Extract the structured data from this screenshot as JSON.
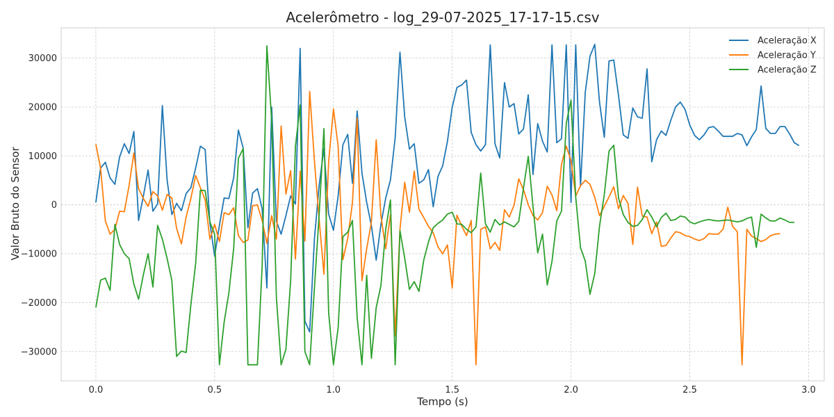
{
  "chart_data": {
    "type": "line",
    "title": "Acelerômetro - log_29-07-2025_17-17-15.csv",
    "xlabel": "Tempo (s)",
    "ylabel": "Valor Bruto do Sensor",
    "xlim": [
      -0.146,
      3.066
    ],
    "ylim": [
      -36000,
      36200
    ],
    "x_ticks": [
      0.0,
      0.5,
      1.0,
      1.5,
      2.0,
      2.5,
      3.0
    ],
    "x_tick_labels": [
      "0.0",
      "0.5",
      "1.0",
      "1.5",
      "2.0",
      "2.5",
      "3.0"
    ],
    "y_ticks": [
      -30000,
      -20000,
      -10000,
      0,
      10000,
      20000,
      30000
    ],
    "y_tick_labels": [
      "−30000",
      "−20000",
      "−10000",
      "0",
      "10000",
      "20000",
      "30000"
    ],
    "grid": true,
    "legend_position": "top-right",
    "dt": 0.02,
    "series": [
      {
        "name": "Aceleração X",
        "color": "#1f77b4",
        "values": [
          500,
          7500,
          8700,
          5500,
          4200,
          9800,
          12500,
          10500,
          15000,
          -3200,
          1800,
          7100,
          -1300,
          200,
          20300,
          5000,
          -2000,
          300,
          -1200,
          2300,
          3500,
          7500,
          12000,
          11300,
          -3700,
          -10500,
          -4200,
          1400,
          1300,
          5500,
          15300,
          11600,
          -4700,
          2400,
          3300,
          -800,
          -17000,
          20000,
          -3400,
          -6000,
          -2200,
          1800,
          200,
          32000,
          -23800,
          -26000,
          -7000,
          4000,
          11500,
          -1900,
          -5200,
          1900,
          12300,
          14400,
          4400,
          19200,
          6500,
          500,
          -4300,
          -11300,
          -4000,
          1400,
          5100,
          13700,
          31200,
          18000,
          11400,
          12500,
          4400,
          5100,
          7200,
          -400,
          5800,
          8000,
          13000,
          20000,
          24000,
          24500,
          25500,
          14800,
          12300,
          11000,
          12300,
          32700,
          12500,
          9600,
          25000,
          20000,
          20700,
          14500,
          15500,
          22500,
          6200,
          16600,
          13000,
          10800,
          32700,
          12700,
          13500,
          32700,
          500,
          32700,
          3800,
          23000,
          30400,
          32800,
          21000,
          13800,
          29400,
          29600,
          22300,
          14300,
          13600,
          19800,
          18000,
          17700,
          27800,
          8800,
          13300,
          15100,
          14200,
          17300,
          20000,
          21000,
          19500,
          16300,
          14200,
          13300,
          14300,
          15800,
          16000,
          15100,
          14000,
          14000,
          14000,
          14600,
          14300,
          12100,
          13900,
          15400,
          24300,
          15600,
          14600,
          14600,
          16000,
          16000,
          14500,
          12700,
          12100
        ]
      },
      {
        "name": "Aceleração Y",
        "color": "#ff7f0e",
        "values": [
          12400,
          7500,
          -3300,
          -6000,
          -5000,
          -1300,
          -1400,
          4000,
          10600,
          3300,
          1300,
          -300,
          2700,
          1800,
          -1100,
          2100,
          1400,
          -4800,
          -8000,
          -2500,
          1300,
          6000,
          3500,
          1000,
          -7000,
          -4000,
          -7500,
          -1600,
          -2000,
          -600,
          -6300,
          -7700,
          -7200,
          -200,
          0,
          -3200,
          -7900,
          -2200,
          -7000,
          16100,
          2200,
          7000,
          -11100,
          6900,
          -7400,
          23200,
          9000,
          -3000,
          -14200,
          8900,
          19600,
          11900,
          -11200,
          -6900,
          400,
          17700,
          -15500,
          -9000,
          -3500,
          13300,
          -2300,
          -9000,
          -2000,
          -26800,
          -5000,
          4600,
          -1500,
          6900,
          -900,
          -2600,
          -4400,
          -5700,
          -8600,
          -10000,
          -8200,
          -17000,
          -2100,
          -4300,
          -6300,
          -3200,
          -32700,
          -5000,
          -4500,
          -9000,
          -7700,
          -9300,
          -1000,
          -2500,
          -100,
          5300,
          3100,
          0,
          -2200,
          -3100,
          -1600,
          3800,
          2000,
          -1200,
          8300,
          12000,
          9000,
          1800,
          3900,
          5000,
          4200,
          1500,
          -2200,
          -300,
          1600,
          3700,
          -800,
          1900,
          300,
          -8100,
          3600,
          -2300,
          -2500,
          -5900,
          -3500,
          -8500,
          -8300,
          -6800,
          -5500,
          -5700,
          -6300,
          -6500,
          -7000,
          -7300,
          -6900,
          -5900,
          -6000,
          -6000,
          -5000,
          -500,
          -4400,
          -5500,
          -32700,
          -5000,
          -6400,
          -6900,
          -7500,
          -7100,
          -6300,
          -6000,
          -5900
        ]
      },
      {
        "name": "Aceleração Z",
        "color": "#2ca02c",
        "values": [
          -21000,
          -15400,
          -15000,
          -17500,
          -4000,
          -8100,
          -10000,
          -11000,
          -16200,
          -19300,
          -14300,
          -10000,
          -16800,
          -4200,
          -7000,
          -11000,
          -15500,
          -31000,
          -29900,
          -30200,
          -20500,
          -12000,
          3000,
          2900,
          -3500,
          -6000,
          -32700,
          -24000,
          -18000,
          -9000,
          9500,
          11500,
          -32700,
          -32700,
          -32700,
          -12500,
          32500,
          17200,
          -19000,
          -32700,
          -29500,
          -15500,
          12000,
          20400,
          -30000,
          -32700,
          -17000,
          -2000,
          15600,
          -22100,
          -32700,
          -25000,
          -6500,
          -5600,
          -3200,
          -23100,
          -32700,
          -14400,
          -31400,
          -21000,
          -16500,
          -5000,
          1000,
          -32700,
          -5300,
          -10900,
          -17300,
          -15700,
          -17700,
          -11300,
          -7600,
          -4700,
          -3800,
          -3100,
          -1900,
          -1500,
          -3900,
          -4000,
          -5000,
          -5700,
          -4500,
          6500,
          -3900,
          -5600,
          -3000,
          -4100,
          -3500,
          -4000,
          -4500,
          -3400,
          3400,
          9900,
          -300,
          -9800,
          -6000,
          -16400,
          -11600,
          -3300,
          -1300,
          16700,
          21400,
          1500,
          -8800,
          -11500,
          -18300,
          -14000,
          -4400,
          2100,
          11000,
          12200,
          1400,
          -2000,
          -3600,
          -4400,
          -4200,
          -3000,
          -1000,
          -2500,
          -4500,
          -2600,
          -1700,
          -3200,
          -3000,
          -2300,
          -2500,
          -3500,
          -3900,
          -3500,
          -3200,
          -3000,
          -3200,
          -3300,
          -3200,
          -3100,
          -3300,
          -3500,
          -3300,
          -2800,
          -2500,
          -8700,
          -1900,
          -2700,
          -3300,
          -3300,
          -2700,
          -3100,
          -3600,
          -3600
        ]
      }
    ]
  }
}
